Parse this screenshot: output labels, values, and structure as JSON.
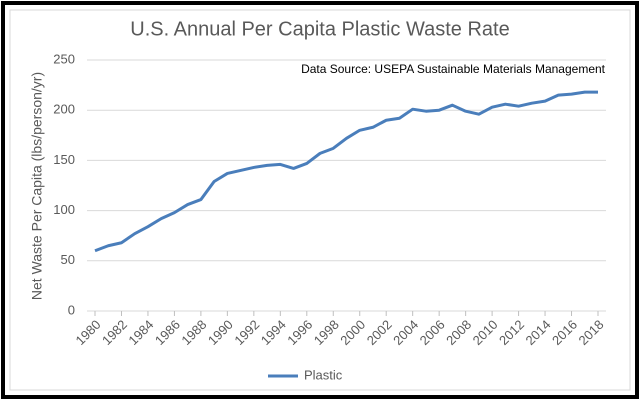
{
  "chart_data": {
    "type": "line",
    "title": "U.S. Annual Per Capita Plastic Waste Rate",
    "annotation": "Data Source: USEPA Sustainable Materials Management",
    "y_label": "Net Waste Per Capita (lbs/person/yr)",
    "x": [
      1980,
      1981,
      1982,
      1983,
      1984,
      1985,
      1986,
      1987,
      1988,
      1989,
      1990,
      1991,
      1992,
      1993,
      1994,
      1995,
      1996,
      1997,
      1998,
      1999,
      2000,
      2001,
      2002,
      2003,
      2004,
      2005,
      2006,
      2007,
      2008,
      2009,
      2010,
      2011,
      2012,
      2013,
      2014,
      2015,
      2016,
      2017,
      2018
    ],
    "series": [
      {
        "name": "Plastic",
        "color": "#4a7ebb",
        "values": [
          60,
          65,
          68,
          77,
          84,
          92,
          98,
          106,
          111,
          129,
          137,
          140,
          143,
          145,
          146,
          142,
          147,
          157,
          162,
          172,
          180,
          183,
          190,
          192,
          201,
          199,
          200,
          205,
          199,
          196,
          203,
          206,
          204,
          207,
          209,
          215,
          216,
          218,
          218
        ]
      }
    ],
    "xlim": [
      1980,
      2018
    ],
    "xticks": [
      1980,
      1982,
      1984,
      1986,
      1988,
      1990,
      1992,
      1994,
      1996,
      1998,
      2000,
      2002,
      2004,
      2006,
      2008,
      2010,
      2012,
      2014,
      2016,
      2018
    ],
    "ylim": [
      0,
      250
    ],
    "yticks": [
      0,
      50,
      100,
      150,
      200,
      250
    ],
    "grid": true,
    "legend": "bottom"
  }
}
